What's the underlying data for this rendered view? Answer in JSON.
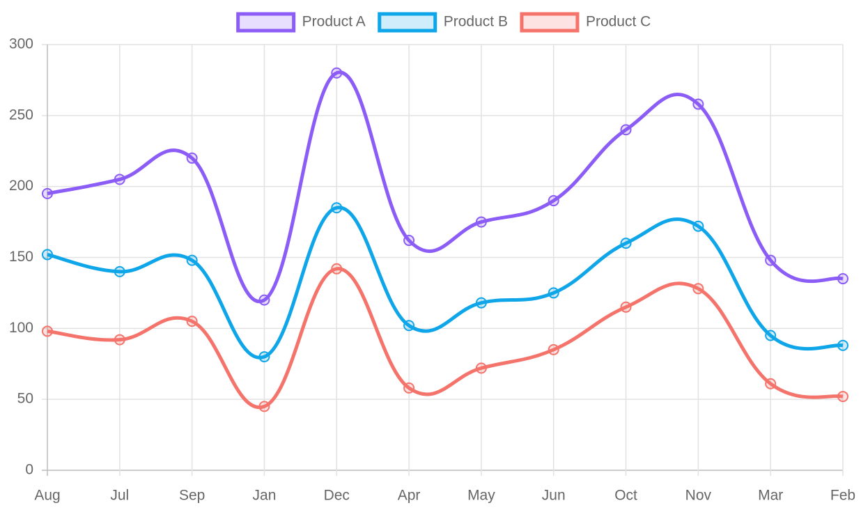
{
  "chart_data": {
    "type": "line",
    "categories": [
      "Aug",
      "Jul",
      "Sep",
      "Jan",
      "Dec",
      "Apr",
      "May",
      "Jun",
      "Oct",
      "Nov",
      "Mar",
      "Feb"
    ],
    "series": [
      {
        "name": "Product A",
        "color": "#8b5cf6",
        "values": [
          195,
          205,
          220,
          120,
          280,
          162,
          175,
          190,
          240,
          258,
          148,
          135
        ]
      },
      {
        "name": "Product B",
        "color": "#0ea5e9",
        "values": [
          152,
          140,
          148,
          80,
          185,
          102,
          118,
          125,
          160,
          172,
          95,
          88
        ]
      },
      {
        "name": "Product C",
        "color": "#f4736b",
        "values": [
          98,
          92,
          105,
          45,
          142,
          58,
          72,
          85,
          115,
          128,
          61,
          52
        ]
      }
    ],
    "ylim": [
      0,
      300
    ],
    "yticks": [
      0,
      50,
      100,
      150,
      200,
      250,
      300
    ],
    "grid": true,
    "legend": "top",
    "smooth": true
  }
}
